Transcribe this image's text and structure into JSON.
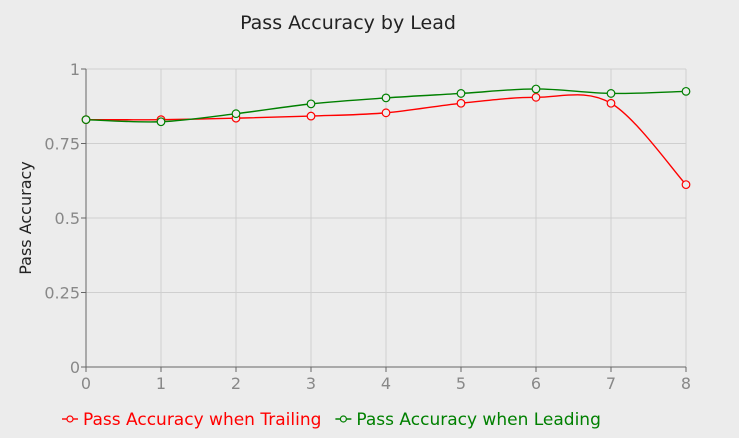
{
  "chart_data": {
    "type": "line",
    "title": "Pass Accuracy by Lead",
    "xlabel": "",
    "ylabel": "Pass Accuracy",
    "xlim": [
      0,
      8
    ],
    "ylim": [
      0,
      1
    ],
    "x_ticks": [
      0,
      1,
      2,
      3,
      4,
      5,
      6,
      7,
      8
    ],
    "x_tick_labels": [
      "0",
      "1",
      "2",
      "3",
      "4",
      "5",
      "6",
      "7",
      "8"
    ],
    "y_ticks": [
      0,
      0.25,
      0.5,
      0.75,
      1
    ],
    "y_tick_labels": [
      "0",
      "0.25",
      "0.5",
      "0.75",
      "1"
    ],
    "grid": true,
    "legend_position": "bottom-left",
    "series": [
      {
        "name": "Pass Accuracy when Trailing",
        "color": "#ff0000",
        "x": [
          0,
          1,
          2,
          3,
          4,
          5,
          6,
          7,
          8
        ],
        "values": [
          0.83,
          0.83,
          0.835,
          0.842,
          0.853,
          0.885,
          0.905,
          0.885,
          0.612
        ]
      },
      {
        "name": "Pass Accuracy when Leading",
        "color": "#008000",
        "x": [
          0,
          1,
          2,
          3,
          4,
          5,
          6,
          7,
          8
        ],
        "values": [
          0.83,
          0.823,
          0.85,
          0.883,
          0.903,
          0.918,
          0.933,
          0.918,
          0.925
        ]
      }
    ]
  }
}
